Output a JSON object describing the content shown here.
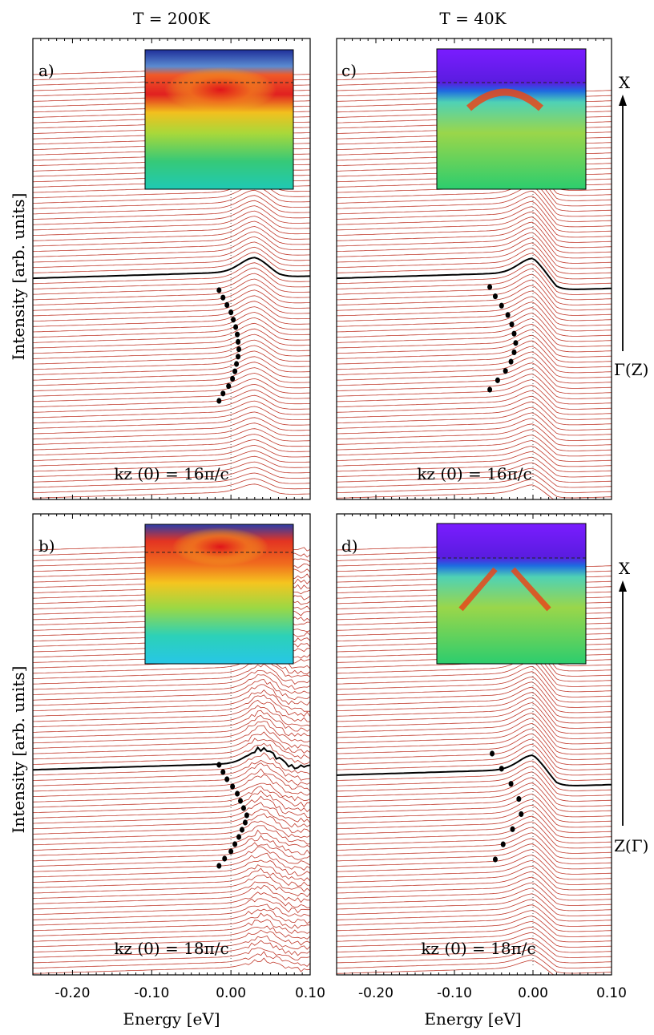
{
  "figure": {
    "column_titles": [
      "T = 200K",
      "T = 40K"
    ],
    "ylabel": "Intensity [arb. units]",
    "xlabel": "Energy [eV]",
    "x_ticks": [
      "-0.20",
      "-0.10",
      "0.00",
      "0.10"
    ],
    "direction_top": "X",
    "direction_labels": [
      "Γ(Z)",
      "Z(Γ)"
    ]
  },
  "colors": {
    "trace": "#c0392b",
    "highlight_trace": "#000000",
    "marker": "#000000"
  },
  "chart_data": [
    {
      "type": "line",
      "panel": "a)",
      "temperature": "T = 200K",
      "annotation": "kz (0) = 16π/c",
      "xlim": [
        -0.25,
        0.1
      ],
      "x_ticks": [
        -0.2,
        -0.1,
        0.0,
        0.1
      ],
      "trace_count": 80,
      "highlight_trace_index": 38,
      "edge_energy": 0.03,
      "peak_energy_points": [
        -0.015,
        -0.01,
        -0.005,
        0.0,
        0.003,
        0.006,
        0.008,
        0.009,
        0.01,
        0.009,
        0.007,
        0.005,
        0.002,
        -0.003,
        -0.01,
        -0.015
      ],
      "inset": "ARPES intensity map (color scale, blue to red)"
    },
    {
      "type": "line",
      "panel": "b)",
      "temperature": "T = 200K",
      "annotation": "kz (0) = 18π/c",
      "xlim": [
        -0.25,
        0.1
      ],
      "x_ticks": [
        -0.2,
        -0.1,
        0.0,
        0.1
      ],
      "trace_count": 80,
      "highlight_trace_index": 41,
      "edge_energy": 0.04,
      "peak_energy_points": [
        -0.015,
        -0.01,
        -0.005,
        0.002,
        0.008,
        0.012,
        0.016,
        0.02,
        0.018,
        0.014,
        0.01,
        0.005,
        0.0,
        -0.008,
        -0.015
      ],
      "inset": "ARPES intensity map (color scale, blue to red)"
    },
    {
      "type": "line",
      "panel": "c)",
      "temperature": "T = 40K",
      "annotation": "kz (0) = 16π/c",
      "xlim": [
        -0.25,
        0.1
      ],
      "x_ticks": [
        -0.2,
        -0.1,
        0.0,
        0.1
      ],
      "trace_count": 80,
      "highlight_trace_index": 38,
      "edge_energy": 0.0,
      "peak_energy_points": [
        -0.055,
        -0.048,
        -0.04,
        -0.032,
        -0.027,
        -0.024,
        -0.022,
        -0.024,
        -0.028,
        -0.035,
        -0.045,
        -0.055
      ],
      "inset": "ARPES intensity map (color scale, purple to red)"
    },
    {
      "type": "line",
      "panel": "d)",
      "temperature": "T = 40K",
      "annotation": "kz (0) = 18π/c",
      "xlim": [
        -0.25,
        0.1
      ],
      "x_ticks": [
        -0.2,
        -0.1,
        0.0,
        0.1
      ],
      "trace_count": 80,
      "highlight_trace_index": 42,
      "edge_energy": 0.0,
      "peak_energy_points": [
        -0.052,
        -0.04,
        -0.028,
        -0.018,
        -0.015,
        -0.026,
        -0.038,
        -0.048
      ],
      "inset": "ARPES intensity map (color scale, purple to red)"
    }
  ]
}
